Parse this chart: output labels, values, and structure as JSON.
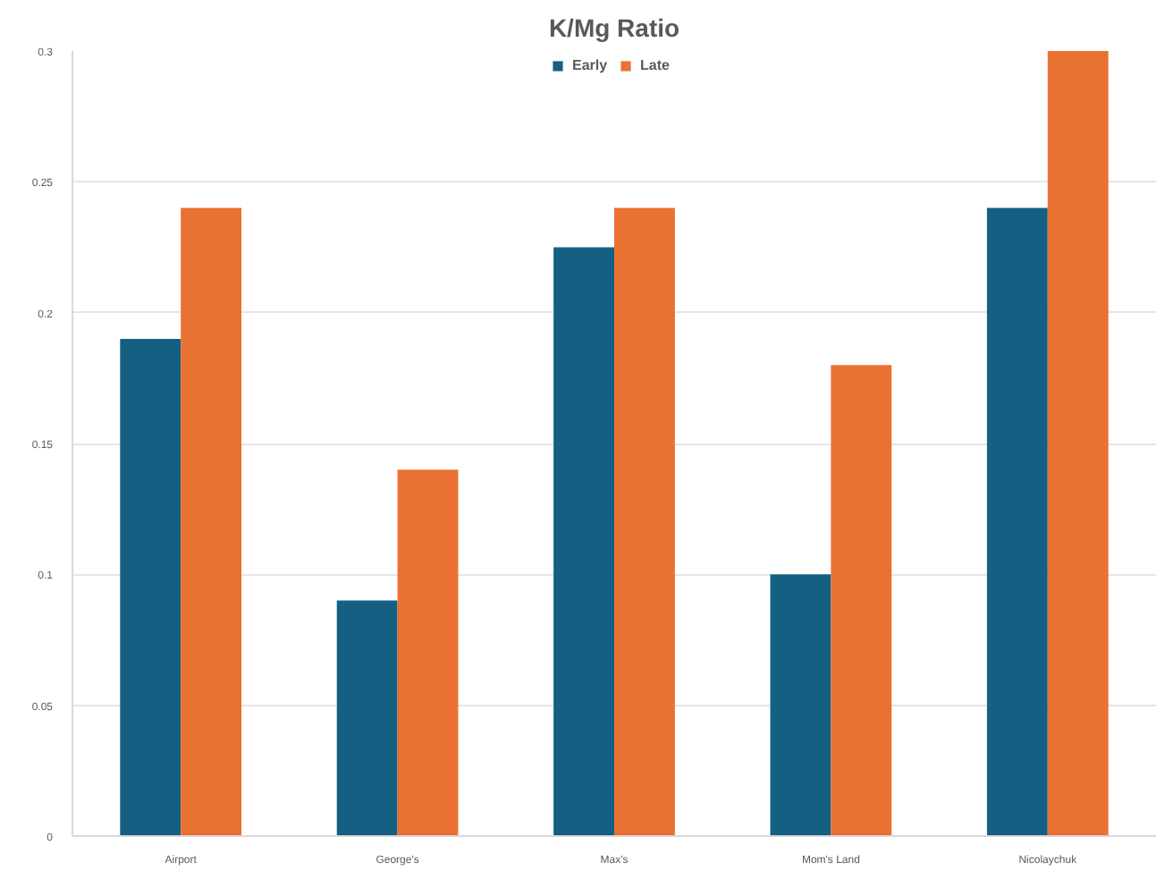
{
  "chart_data": {
    "type": "bar",
    "title": "K/Mg Ratio",
    "categories": [
      "Airport",
      "George's",
      "Max's",
      "Mom's Land",
      "Nicolaychuk"
    ],
    "series": [
      {
        "name": "Early",
        "color": "#156082",
        "values": [
          0.19,
          0.09,
          0.225,
          0.1,
          0.24
        ]
      },
      {
        "name": "Late",
        "color": "#e97132",
        "values": [
          0.24,
          0.14,
          0.24,
          0.18,
          0.3
        ]
      }
    ],
    "ylim": [
      0,
      0.3
    ],
    "yticks": [
      0,
      0.05,
      0.1,
      0.15,
      0.2,
      0.25,
      0.3
    ],
    "grid": "y",
    "legend": "top"
  }
}
